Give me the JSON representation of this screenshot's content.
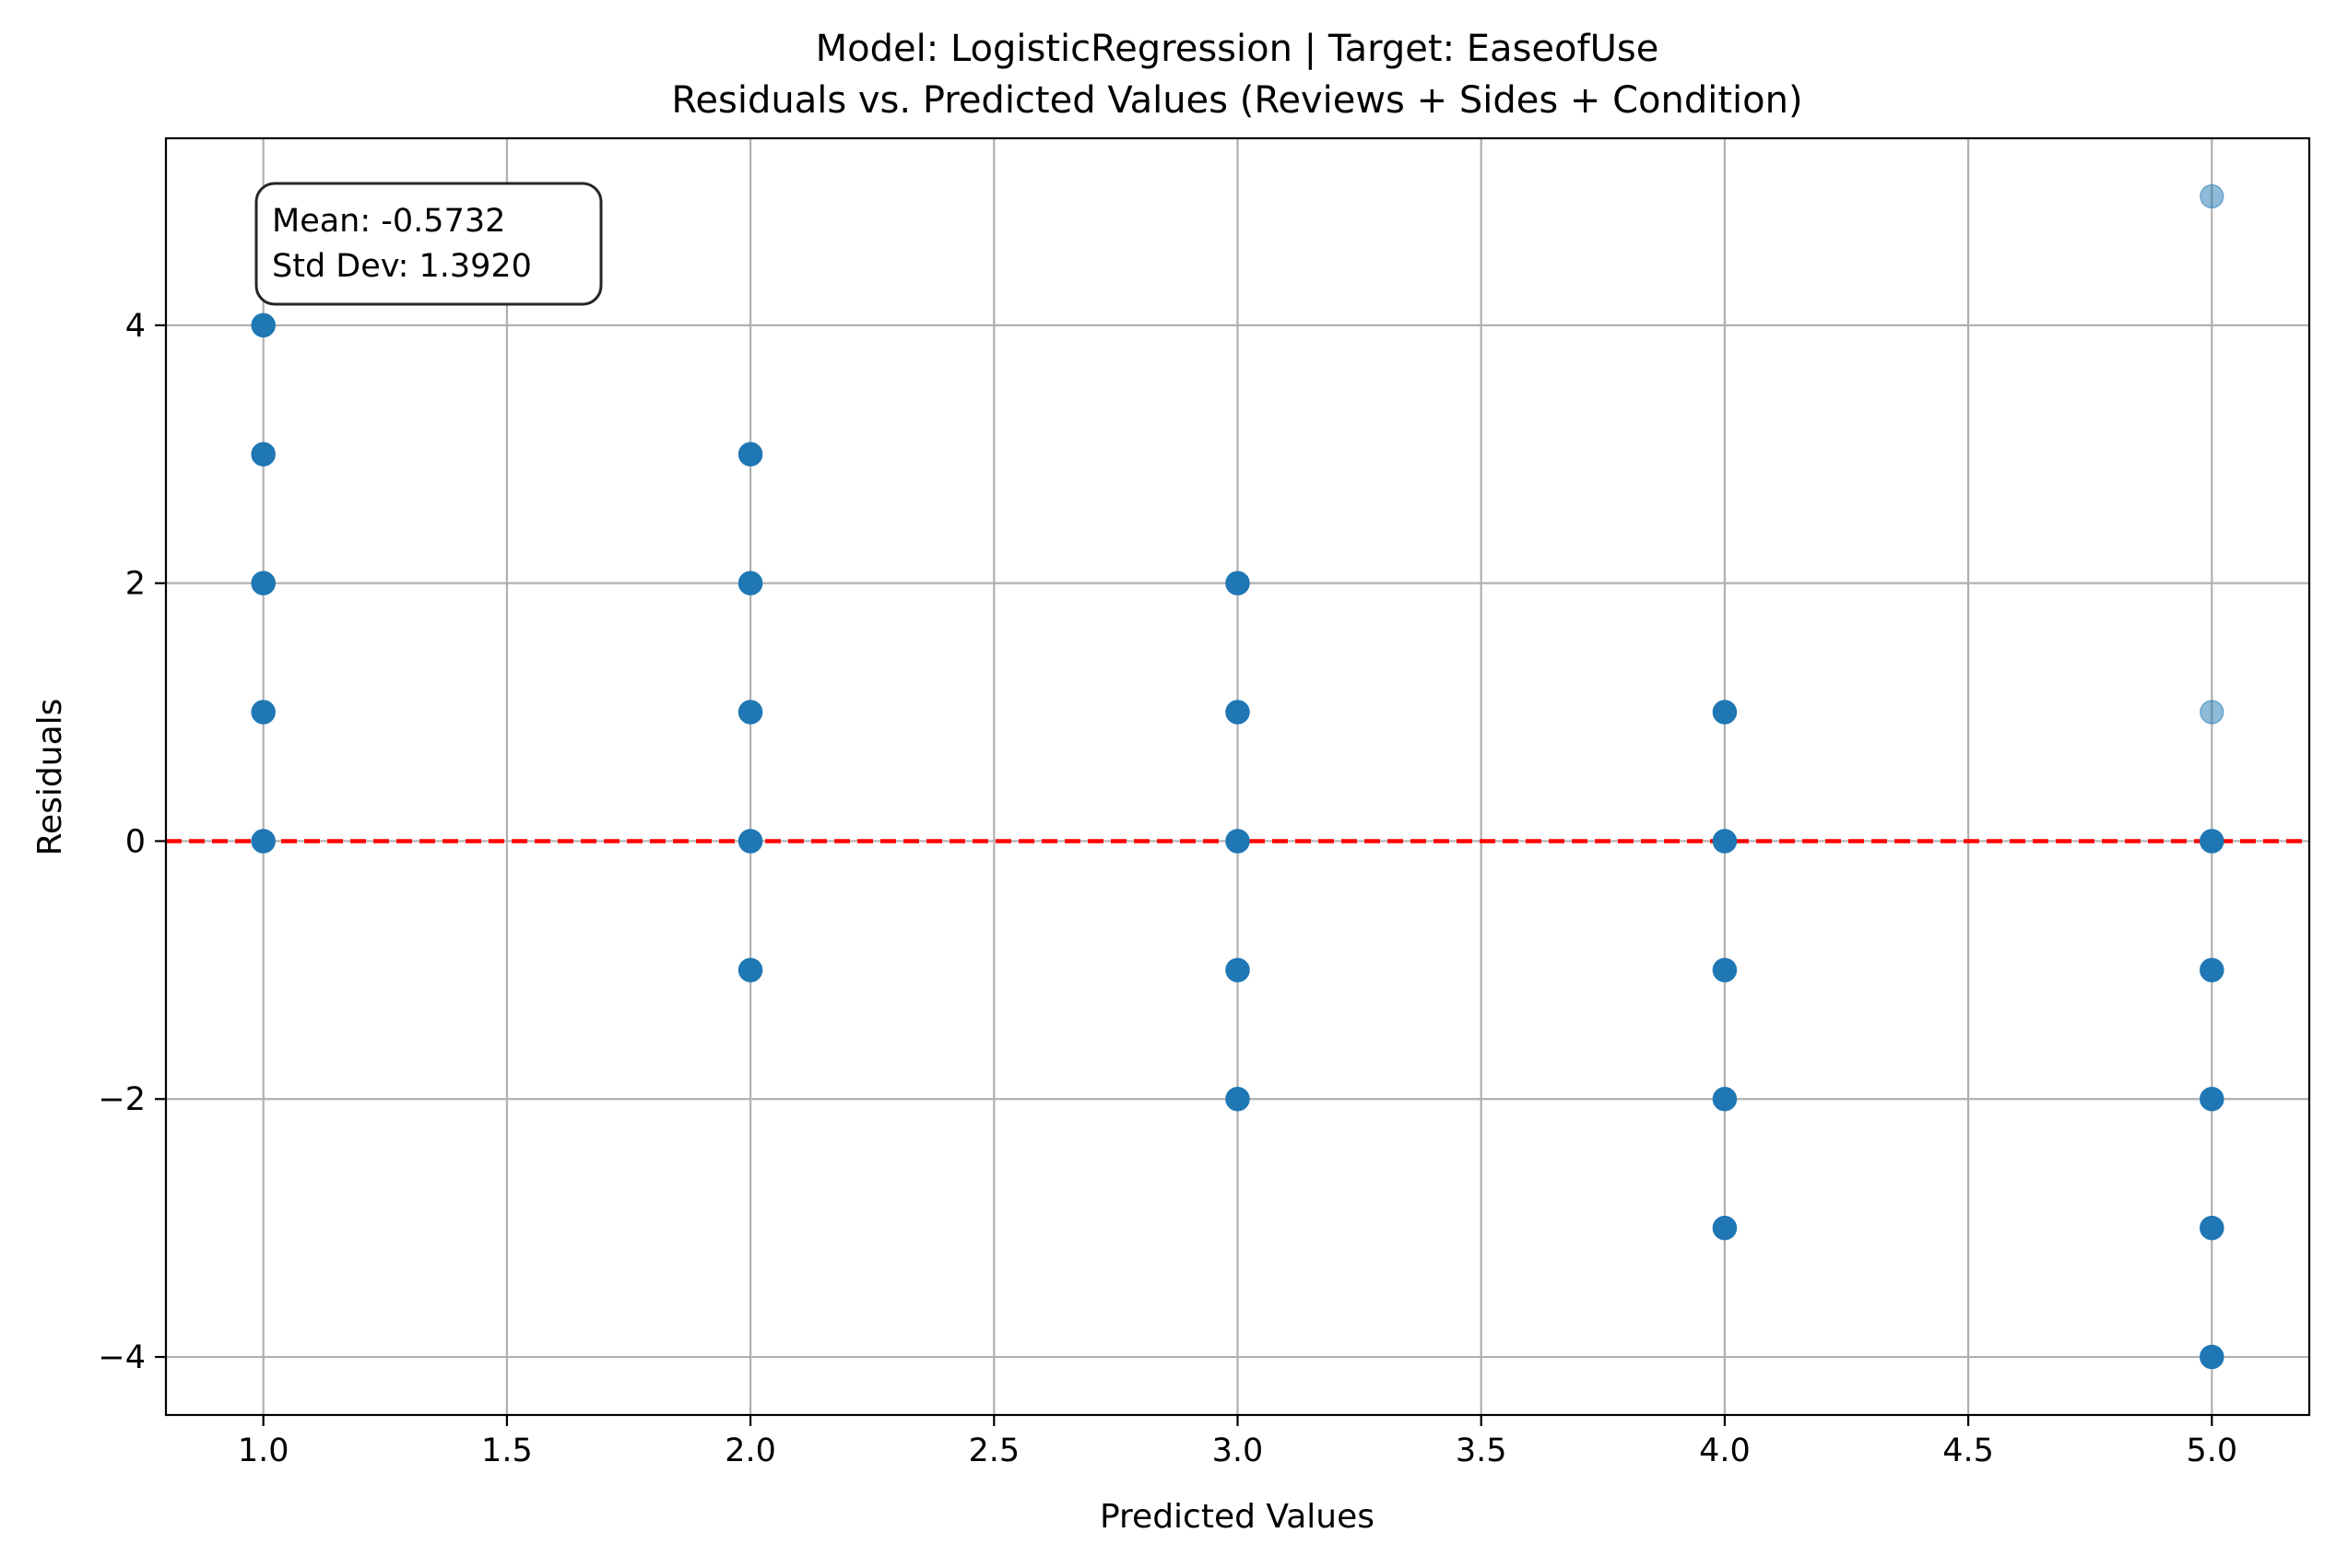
{
  "chart_data": {
    "type": "scatter",
    "title_line1": "Model: LogisticRegression | Target: EaseofUse",
    "title_line2": "Residuals vs. Predicted Values (Reviews + Sides + Condition)",
    "xlabel": "Predicted Values",
    "ylabel": "Residuals",
    "xlim": [
      0.8,
      5.2
    ],
    "ylim": [
      -4.45,
      5.45
    ],
    "xticks": [
      1.0,
      1.5,
      2.0,
      2.5,
      3.0,
      3.5,
      4.0,
      4.5,
      5.0
    ],
    "xtick_labels": [
      "1.0",
      "1.5",
      "2.0",
      "2.5",
      "3.0",
      "3.5",
      "4.0",
      "4.5",
      "5.0"
    ],
    "yticks": [
      -4,
      -2,
      0,
      2,
      4
    ],
    "ytick_labels": [
      "−4",
      "−2",
      "0",
      "2",
      "4"
    ],
    "grid": true,
    "reference_line": {
      "y": 0,
      "color": "#ff0000",
      "style": "dashed"
    },
    "annotation": {
      "mean_text": "Mean: -0.5732",
      "std_text": "Std Dev: 1.3920",
      "placement": "top-left"
    },
    "marker_color": "#1f77b4",
    "points": [
      {
        "x": 1,
        "y": 4,
        "alpha": 1
      },
      {
        "x": 1,
        "y": 3,
        "alpha": 1
      },
      {
        "x": 1,
        "y": 2,
        "alpha": 1
      },
      {
        "x": 1,
        "y": 1,
        "alpha": 1
      },
      {
        "x": 1,
        "y": 0,
        "alpha": 1
      },
      {
        "x": 2,
        "y": 3,
        "alpha": 1
      },
      {
        "x": 2,
        "y": 2,
        "alpha": 1
      },
      {
        "x": 2,
        "y": 1,
        "alpha": 1
      },
      {
        "x": 2,
        "y": 0,
        "alpha": 1
      },
      {
        "x": 2,
        "y": -1,
        "alpha": 1
      },
      {
        "x": 3,
        "y": 2,
        "alpha": 1
      },
      {
        "x": 3,
        "y": 1,
        "alpha": 1
      },
      {
        "x": 3,
        "y": 0,
        "alpha": 1
      },
      {
        "x": 3,
        "y": -1,
        "alpha": 1
      },
      {
        "x": 3,
        "y": -2,
        "alpha": 1
      },
      {
        "x": 4,
        "y": 1,
        "alpha": 1
      },
      {
        "x": 4,
        "y": 0,
        "alpha": 1
      },
      {
        "x": 4,
        "y": -1,
        "alpha": 1
      },
      {
        "x": 4,
        "y": -2,
        "alpha": 1
      },
      {
        "x": 4,
        "y": -3,
        "alpha": 1
      },
      {
        "x": 5,
        "y": 5,
        "alpha": 0.5
      },
      {
        "x": 5,
        "y": 1,
        "alpha": 0.5
      },
      {
        "x": 5,
        "y": 0,
        "alpha": 1
      },
      {
        "x": 5,
        "y": -1,
        "alpha": 1
      },
      {
        "x": 5,
        "y": -2,
        "alpha": 1
      },
      {
        "x": 5,
        "y": -3,
        "alpha": 1
      },
      {
        "x": 5,
        "y": -4,
        "alpha": 1
      }
    ]
  }
}
